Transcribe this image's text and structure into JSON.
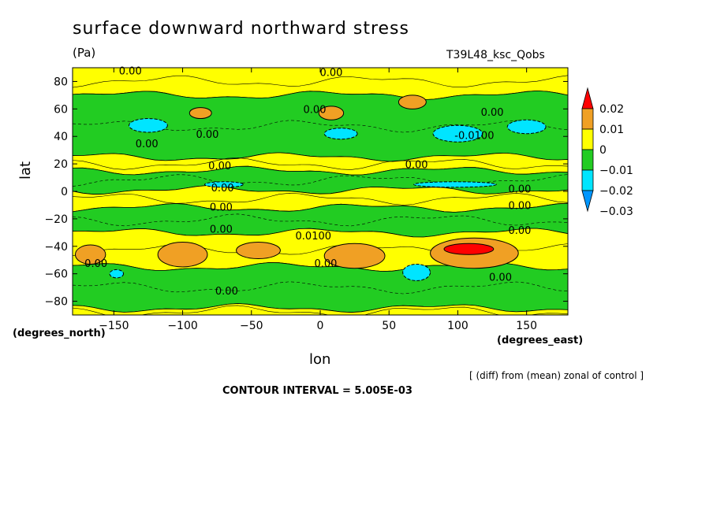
{
  "chart_data": {
    "type": "heatmap",
    "title": "surface downward northward stress",
    "units": "(Pa)",
    "run_label": "T39L48_ksc_Qobs",
    "xlabel": "lon",
    "ylabel": "lat",
    "x_units": "(degrees_east)",
    "y_units": "(degrees_north)",
    "xlim": [
      -180,
      180
    ],
    "ylim": [
      -90,
      90
    ],
    "x_ticks": [
      -150,
      -100,
      -50,
      0,
      50,
      100,
      150
    ],
    "y_ticks": [
      80,
      60,
      40,
      20,
      0,
      -20,
      -40,
      -60,
      -80
    ],
    "colorbar": {
      "levels": [
        0.02,
        0.01,
        0,
        -0.01,
        -0.02,
        -0.03
      ],
      "level_labels": [
        "0.02",
        "0.01",
        "0",
        "−0.01",
        "−0.02",
        "−0.03"
      ],
      "colors": [
        "#ff0000",
        "#f0a024",
        "#ffff00",
        "#22cc22",
        "#00e5ff",
        "#0096ff"
      ]
    },
    "bands": [
      {
        "lat_top": 90,
        "lat_bottom": 70,
        "class": "pos"
      },
      {
        "lat_top": 70,
        "lat_bottom": 25,
        "class": "neg"
      },
      {
        "lat_top": 25,
        "lat_bottom": 15,
        "class": "pos"
      },
      {
        "lat_top": 15,
        "lat_bottom": 1,
        "class": "neg"
      },
      {
        "lat_top": 1,
        "lat_bottom": -12,
        "class": "pos"
      },
      {
        "lat_top": -12,
        "lat_bottom": -30,
        "class": "neg"
      },
      {
        "lat_top": -30,
        "lat_bottom": -55,
        "class": "pos"
      },
      {
        "lat_top": -55,
        "lat_bottom": -85,
        "class": "neg"
      },
      {
        "lat_top": -85,
        "lat_bottom": -90,
        "class": "pos"
      }
    ],
    "blobs": [
      {
        "lon": -125,
        "lat": 48,
        "rlon": 14,
        "rlat": 5,
        "class": "vneg"
      },
      {
        "lon": -87,
        "lat": 57,
        "rlon": 8,
        "rlat": 4,
        "class": "vpos"
      },
      {
        "lon": 8,
        "lat": 57,
        "rlon": 9,
        "rlat": 5,
        "class": "vpos"
      },
      {
        "lon": 67,
        "lat": 65,
        "rlon": 10,
        "rlat": 5,
        "class": "vpos"
      },
      {
        "lon": 15,
        "lat": 42,
        "rlon": 12,
        "rlat": 4,
        "class": "vneg"
      },
      {
        "lon": 100,
        "lat": 42,
        "rlon": 18,
        "rlat": 6,
        "class": "vneg"
      },
      {
        "lon": 150,
        "lat": 47,
        "rlon": 14,
        "rlat": 5,
        "class": "vneg"
      },
      {
        "lon": -70,
        "lat": 5,
        "rlon": 14,
        "rlat": 2,
        "class": "vneg"
      },
      {
        "lon": 98,
        "lat": 5,
        "rlon": 30,
        "rlat": 2,
        "class": "vneg"
      },
      {
        "lon": -167,
        "lat": -46,
        "rlon": 11,
        "rlat": 7,
        "class": "vpos"
      },
      {
        "lon": -100,
        "lat": -46,
        "rlon": 18,
        "rlat": 9,
        "class": "vpos"
      },
      {
        "lon": -45,
        "lat": -43,
        "rlon": 16,
        "rlat": 6,
        "class": "vpos"
      },
      {
        "lon": 25,
        "lat": -47,
        "rlon": 22,
        "rlat": 9,
        "class": "vpos"
      },
      {
        "lon": 112,
        "lat": -45,
        "rlon": 32,
        "rlat": 11,
        "class": "vpos"
      },
      {
        "lon": 108,
        "lat": -42,
        "rlon": 18,
        "rlat": 4,
        "class": "max"
      },
      {
        "lon": 70,
        "lat": -59,
        "rlon": 10,
        "rlat": 6,
        "class": "vneg"
      },
      {
        "lon": -148,
        "lat": -60,
        "rlon": 5,
        "rlat": 3,
        "class": "vneg"
      }
    ],
    "contour_labels": [
      {
        "text": "0.00",
        "lon": -138,
        "lat": 85
      },
      {
        "text": "0.00",
        "lon": 8,
        "lat": 84
      },
      {
        "text": "0.00",
        "lon": -4,
        "lat": 57
      },
      {
        "text": "0.00",
        "lon": 125,
        "lat": 55
      },
      {
        "text": "0.00",
        "lon": -82,
        "lat": 39
      },
      {
        "text": "0.00",
        "lon": -126,
        "lat": 32
      },
      {
        "text": "-0.0100",
        "lon": 112,
        "lat": 38
      },
      {
        "text": "0.00",
        "lon": -73,
        "lat": 16
      },
      {
        "text": "0.00",
        "lon": 70,
        "lat": 17
      },
      {
        "text": "0.00",
        "lon": -71,
        "lat": 0
      },
      {
        "text": "0.00",
        "lon": 145,
        "lat": -1
      },
      {
        "text": "0.00",
        "lon": -72,
        "lat": -14
      },
      {
        "text": "0.00",
        "lon": 145,
        "lat": -13
      },
      {
        "text": "0.00",
        "lon": 145,
        "lat": -31
      },
      {
        "text": "0.00",
        "lon": -72,
        "lat": -30
      },
      {
        "text": "0.0100",
        "lon": -5,
        "lat": -35
      },
      {
        "text": "0.00",
        "lon": -163,
        "lat": -55
      },
      {
        "text": "0.00",
        "lon": 4,
        "lat": -55
      },
      {
        "text": "0.00",
        "lon": 131,
        "lat": -65
      },
      {
        "text": "0.00",
        "lon": -68,
        "lat": -75
      }
    ]
  },
  "footer": {
    "diff_note": "[ (diff) from (mean) zonal of control ]",
    "contour_interval": "CONTOUR INTERVAL = 5.005E-03"
  }
}
